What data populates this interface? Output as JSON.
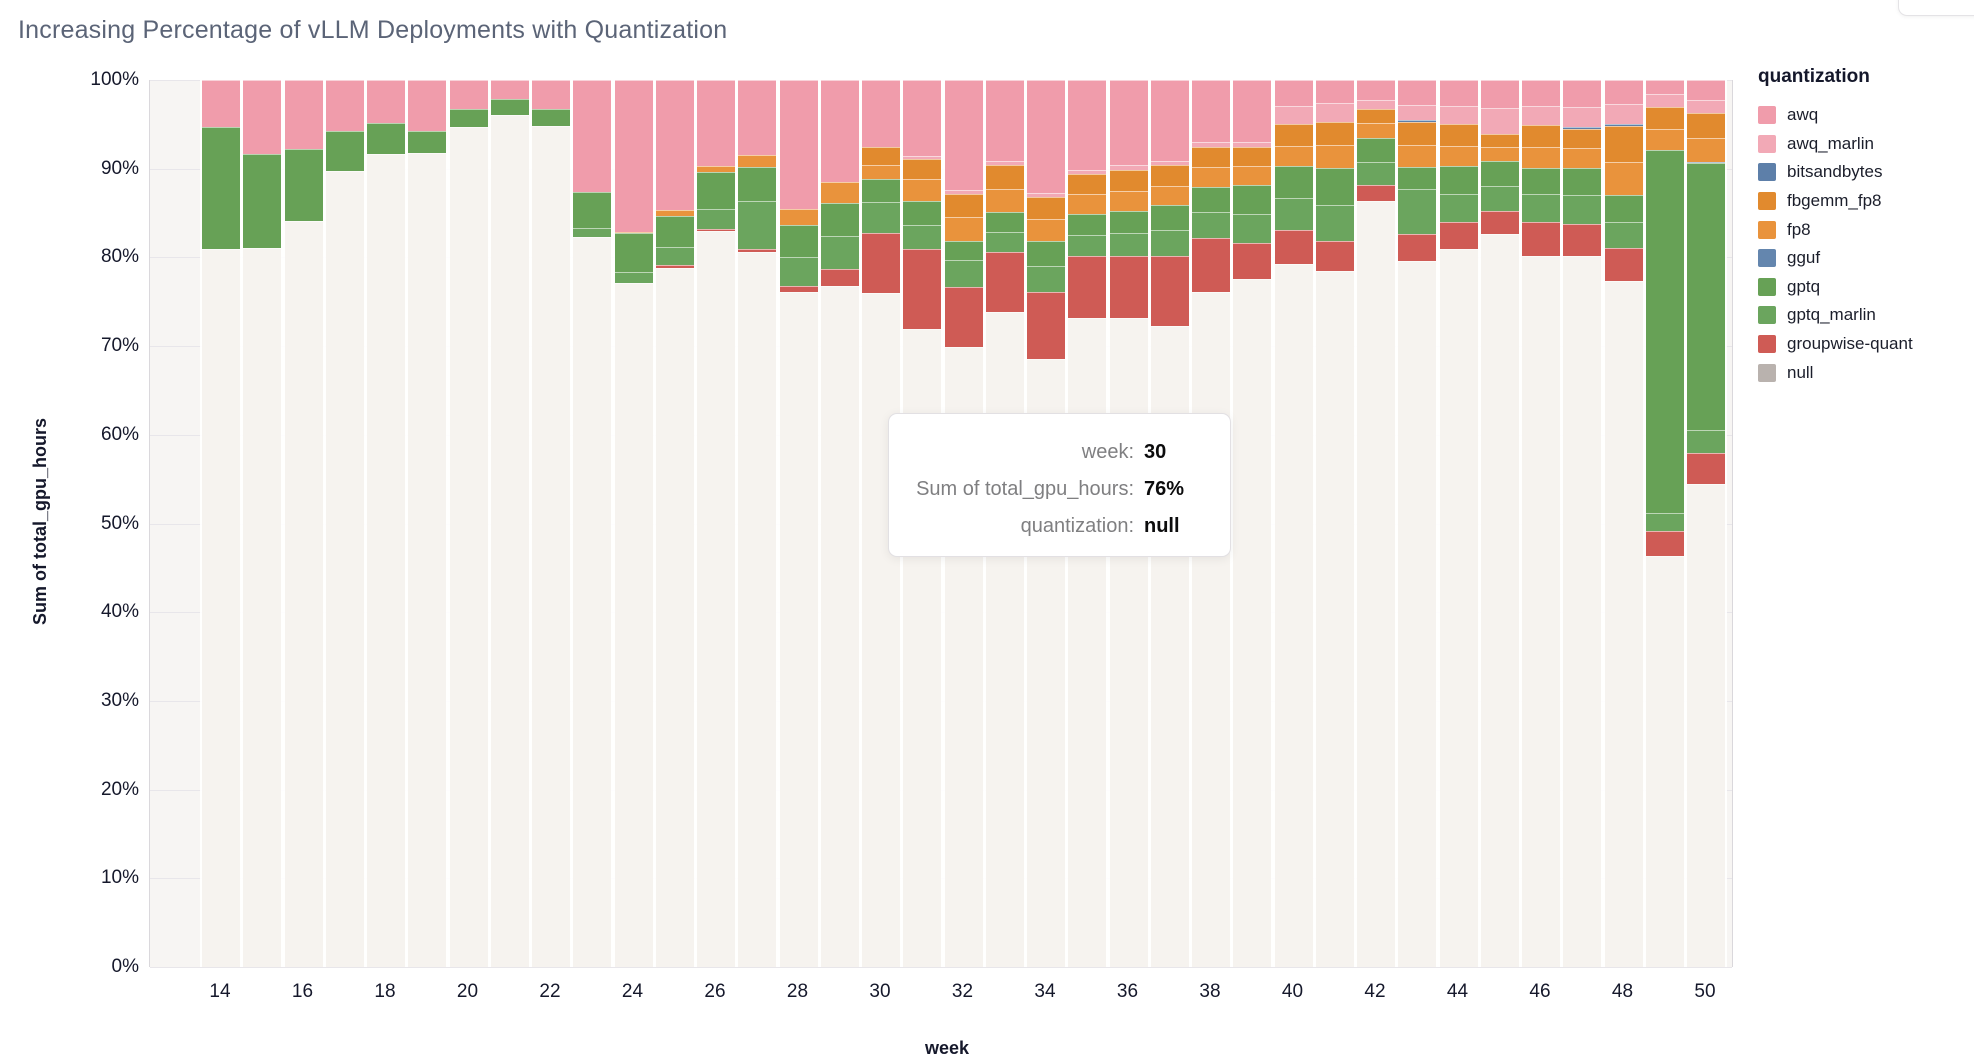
{
  "title": "Increasing Percentage of vLLM Deployments with Quantization",
  "y_axis": {
    "title": "Sum of total_gpu_hours",
    "ticks": [
      "0%",
      "10%",
      "20%",
      "30%",
      "40%",
      "50%",
      "60%",
      "70%",
      "80%",
      "90%",
      "100%"
    ]
  },
  "x_axis": {
    "title": "week",
    "ticks": [
      14,
      16,
      18,
      20,
      22,
      24,
      26,
      28,
      30,
      32,
      34,
      36,
      38,
      40,
      42,
      44,
      46,
      48,
      50
    ]
  },
  "legend": {
    "title": "quantization",
    "items": [
      {
        "label": "awq",
        "color": "#f09cab"
      },
      {
        "label": "awq_marlin",
        "color": "#f2a9b6"
      },
      {
        "label": "bitsandbytes",
        "color": "#5d7fa9"
      },
      {
        "label": "fbgemm_fp8",
        "color": "#e18a2e"
      },
      {
        "label": "fp8",
        "color": "#e9933c"
      },
      {
        "label": "gguf",
        "color": "#6486ae"
      },
      {
        "label": "gptq",
        "color": "#67a156"
      },
      {
        "label": "gptq_marlin",
        "color": "#6ba55e"
      },
      {
        "label": "groupwise-quant",
        "color": "#cf5b55"
      },
      {
        "label": "null",
        "color": "#b9b2ae"
      }
    ]
  },
  "tooltip": {
    "rows": [
      {
        "label": "week:",
        "value": "30"
      },
      {
        "label": "Sum of total_gpu_hours:",
        "value": "76%"
      },
      {
        "label": "quantization:",
        "value": "null"
      }
    ]
  },
  "chart_data": {
    "type": "bar",
    "subtype": "normalized-stacked-percent",
    "title": "Increasing Percentage of vLLM Deployments with Quantization",
    "xlabel": "week",
    "ylabel": "Sum of total_gpu_hours",
    "ylim": [
      0,
      100
    ],
    "grid": true,
    "legend_position": "right",
    "stack_order_top_to_bottom": [
      "awq",
      "awq_marlin",
      "bitsandbytes",
      "fbgemm_fp8",
      "fp8",
      "gguf",
      "gptq",
      "gptq_marlin",
      "groupwise-quant",
      "null"
    ],
    "colors": {
      "awq": "#f09cab",
      "awq_marlin": "#f2a9b6",
      "bitsandbytes": "#5d7fa9",
      "fbgemm_fp8": "#e18a2e",
      "fp8": "#e9933c",
      "gguf": "#6486ae",
      "gptq": "#67a156",
      "gptq_marlin": "#6ba55e",
      "groupwise-quant": "#cf5b55",
      "null": "#f6f3ef"
    },
    "bars": [
      {
        "week": 14,
        "segments": {
          "awq": 5.3,
          "gptq": 13.7,
          "null": 81.0
        }
      },
      {
        "week": 15,
        "segments": {
          "awq": 8.3,
          "gptq": 10.6,
          "null": 81.1
        }
      },
      {
        "week": 16,
        "segments": {
          "awq": 7.8,
          "gptq": 8.1,
          "null": 84.1
        }
      },
      {
        "week": 17,
        "segments": {
          "awq": 5.7,
          "gptq": 4.6,
          "null": 89.7
        }
      },
      {
        "week": 18,
        "segments": {
          "awq": 4.9,
          "gptq": 3.4,
          "null": 91.7
        }
      },
      {
        "week": 19,
        "segments": {
          "awq": 5.8,
          "gptq": 2.4,
          "null": 91.8
        }
      },
      {
        "week": 20,
        "segments": {
          "awq": 3.3,
          "gptq": 2.0,
          "null": 94.7
        }
      },
      {
        "week": 21,
        "segments": {
          "awq": 2.1,
          "gptq": 1.9,
          "null": 96.0
        }
      },
      {
        "week": 22,
        "segments": {
          "awq": 3.3,
          "gptq": 1.9,
          "null": 94.8
        }
      },
      {
        "week": 23,
        "segments": {
          "awq": 12.6,
          "gptq": 4.1,
          "gptq_marlin": 1.0,
          "null": 82.3
        }
      },
      {
        "week": 24,
        "segments": {
          "awq": 17.1,
          "fp8": 0.2,
          "gptq": 4.4,
          "gptq_marlin": 1.2,
          "null": 77.1
        }
      },
      {
        "week": 25,
        "segments": {
          "awq": 14.7,
          "fp8": 0.6,
          "gptq": 3.5,
          "gptq_marlin": 2.1,
          "groupwise-quant": 0.3,
          "null": 78.8
        }
      },
      {
        "week": 26,
        "segments": {
          "awq": 9.7,
          "fp8": 0.7,
          "gptq": 4.2,
          "gptq_marlin": 2.2,
          "groupwise-quant": 0.2,
          "null": 83.0
        }
      },
      {
        "week": 27,
        "segments": {
          "awq": 8.5,
          "fp8": 1.3,
          "gptq": 3.9,
          "gptq_marlin": 5.4,
          "groupwise-quant": 0.3,
          "null": 80.6
        }
      },
      {
        "week": 28,
        "segments": {
          "awq": 14.5,
          "fp8": 1.9,
          "gptq": 3.6,
          "gptq_marlin": 3.2,
          "groupwise-quant": 0.7,
          "null": 76.1
        }
      },
      {
        "week": 29,
        "segments": {
          "awq": 11.5,
          "fp8": 2.4,
          "gptq": 3.7,
          "gptq_marlin": 3.7,
          "groupwise-quant": 1.9,
          "null": 76.8
        }
      },
      {
        "week": 30,
        "segments": {
          "awq": 7.6,
          "fbgemm_fp8": 2.0,
          "fp8": 1.6,
          "gptq": 2.6,
          "gptq_marlin": 3.4,
          "groupwise-quant": 6.8,
          "null": 76.0
        }
      },
      {
        "week": 31,
        "segments": {
          "awq": 8.6,
          "awq_marlin": 0.3,
          "fbgemm_fp8": 2.3,
          "fp8": 2.4,
          "gptq": 2.7,
          "gptq_marlin": 2.8,
          "groupwise-quant": 9.0,
          "null": 71.9
        }
      },
      {
        "week": 32,
        "segments": {
          "awq": 12.4,
          "awq_marlin": 0.4,
          "fbgemm_fp8": 2.7,
          "fp8": 2.7,
          "gptq": 2.1,
          "gptq_marlin": 3.0,
          "groupwise-quant": 6.8,
          "null": 69.9
        }
      },
      {
        "week": 33,
        "segments": {
          "awq": 9.1,
          "awq_marlin": 0.5,
          "fbgemm_fp8": 2.7,
          "fp8": 2.6,
          "gptq": 2.2,
          "gptq_marlin": 2.3,
          "groupwise-quant": 6.8,
          "null": 73.8
        }
      },
      {
        "week": 34,
        "segments": {
          "awq": 12.7,
          "awq_marlin": 0.5,
          "fbgemm_fp8": 2.5,
          "fp8": 2.4,
          "gptq": 2.9,
          "gptq_marlin": 2.9,
          "groupwise-quant": 7.6,
          "null": 68.5
        }
      },
      {
        "week": 35,
        "segments": {
          "awq": 10.1,
          "awq_marlin": 0.5,
          "fbgemm_fp8": 2.3,
          "fp8": 2.2,
          "gptq": 2.4,
          "gptq_marlin": 2.4,
          "groupwise-quant": 6.9,
          "null": 73.2
        }
      },
      {
        "week": 36,
        "segments": {
          "awq": 9.6,
          "awq_marlin": 0.5,
          "fbgemm_fp8": 2.4,
          "fp8": 2.3,
          "gptq": 2.5,
          "gptq_marlin": 2.5,
          "groupwise-quant": 7.0,
          "null": 73.2
        }
      },
      {
        "week": 37,
        "segments": {
          "awq": 9.1,
          "awq_marlin": 0.5,
          "fbgemm_fp8": 2.3,
          "fp8": 2.2,
          "gptq": 2.8,
          "gptq_marlin": 2.9,
          "groupwise-quant": 7.9,
          "null": 72.3
        }
      },
      {
        "week": 38,
        "segments": {
          "awq": 7.0,
          "awq_marlin": 0.5,
          "fbgemm_fp8": 2.3,
          "fp8": 2.3,
          "gptq": 2.8,
          "gptq_marlin": 2.9,
          "groupwise-quant": 6.1,
          "null": 76.1
        }
      },
      {
        "week": 39,
        "segments": {
          "awq": 7.0,
          "awq_marlin": 0.5,
          "fbgemm_fp8": 2.2,
          "fp8": 2.1,
          "gptq": 3.3,
          "gptq_marlin": 3.3,
          "groupwise-quant": 4.0,
          "null": 77.6
        }
      },
      {
        "week": 40,
        "segments": {
          "awq": 2.9,
          "awq_marlin": 2.1,
          "fbgemm_fp8": 2.4,
          "fp8": 2.3,
          "gptq": 3.6,
          "gptq_marlin": 3.6,
          "groupwise-quant": 3.8,
          "null": 79.3
        }
      },
      {
        "week": 41,
        "segments": {
          "awq": 2.6,
          "awq_marlin": 2.1,
          "fbgemm_fp8": 2.6,
          "fp8": 2.6,
          "gptq": 4.2,
          "gptq_marlin": 4.1,
          "groupwise-quant": 3.3,
          "null": 78.5
        }
      },
      {
        "week": 42,
        "segments": {
          "awq": 2.2,
          "awq_marlin": 1.1,
          "fbgemm_fp8": 1.6,
          "fp8": 1.6,
          "gptq": 2.7,
          "gptq_marlin": 2.6,
          "groupwise-quant": 1.8,
          "null": 86.4
        }
      },
      {
        "week": 43,
        "segments": {
          "awq": 2.8,
          "awq_marlin": 1.7,
          "bitsandbytes": 0.2,
          "fbgemm_fp8": 2.6,
          "fp8": 2.5,
          "gptq": 2.5,
          "gptq_marlin": 5.1,
          "groupwise-quant": 3.0,
          "null": 79.6
        }
      },
      {
        "week": 44,
        "segments": {
          "awq": 2.9,
          "awq_marlin": 2.1,
          "fbgemm_fp8": 2.4,
          "fp8": 2.3,
          "gptq": 3.1,
          "gptq_marlin": 3.2,
          "groupwise-quant": 3.1,
          "null": 80.9
        }
      },
      {
        "week": 45,
        "segments": {
          "awq": 3.2,
          "awq_marlin": 2.9,
          "fbgemm_fp8": 1.5,
          "fp8": 1.5,
          "gptq": 2.8,
          "gptq_marlin": 2.9,
          "groupwise-quant": 2.6,
          "null": 82.6
        }
      },
      {
        "week": 46,
        "segments": {
          "awq": 2.9,
          "awq_marlin": 2.2,
          "fbgemm_fp8": 2.4,
          "fp8": 2.4,
          "gptq": 3.0,
          "gptq_marlin": 3.1,
          "groupwise-quant": 3.9,
          "null": 80.1
        }
      },
      {
        "week": 47,
        "segments": {
          "awq": 3.1,
          "awq_marlin": 2.2,
          "bitsandbytes": 0.2,
          "fbgemm_fp8": 2.2,
          "fp8": 2.2,
          "gptq": 3.1,
          "gptq_marlin": 3.2,
          "groupwise-quant": 3.6,
          "null": 80.2
        }
      },
      {
        "week": 48,
        "segments": {
          "awq": 2.7,
          "awq_marlin": 2.3,
          "bitsandbytes": 0.2,
          "fbgemm_fp8": 4.0,
          "fp8": 3.8,
          "gptq": 3.0,
          "gptq_marlin": 3.0,
          "groupwise-quant": 3.7,
          "null": 77.3
        }
      },
      {
        "week": 49,
        "segments": {
          "awq": 1.6,
          "awq_marlin": 1.4,
          "fbgemm_fp8": 2.5,
          "fp8": 2.4,
          "gptq": 40.9,
          "gptq_marlin": 2.0,
          "groupwise-quant": 2.9,
          "null": 46.3
        }
      },
      {
        "week": 50,
        "segments": {
          "awq": 2.3,
          "awq_marlin": 1.4,
          "gguf": 0.2,
          "fbgemm_fp8": 2.8,
          "fp8": 2.7,
          "gptq": 30.1,
          "gptq_marlin": 2.6,
          "groupwise-quant": 3.4,
          "null": 54.5
        }
      }
    ]
  }
}
